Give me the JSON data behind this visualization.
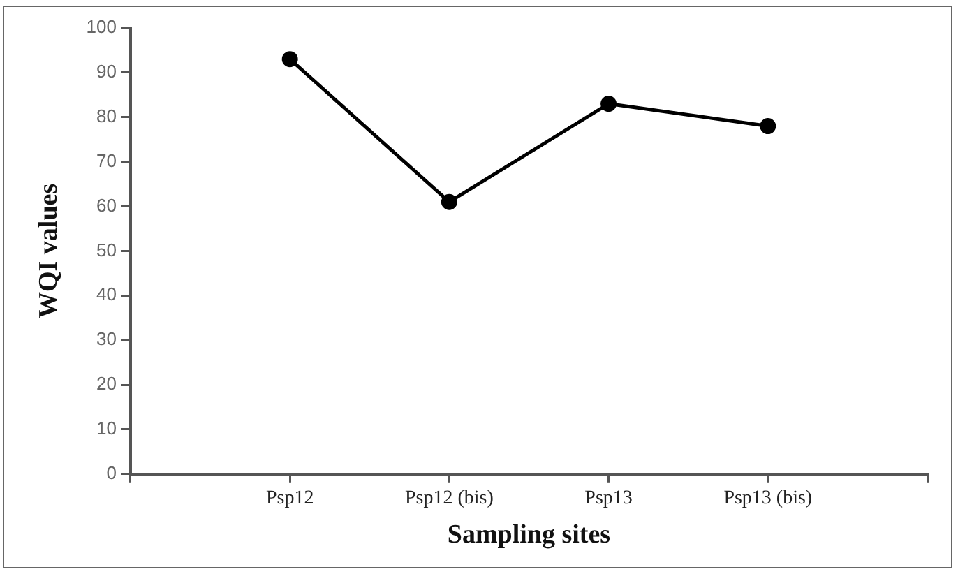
{
  "chart_data": {
    "type": "line",
    "xlabel": "Sampling sites",
    "ylabel": "WQI values",
    "categories": [
      null,
      "Psp12",
      "Psp12 (bis)",
      "Psp13",
      "Psp13 (bis)",
      null
    ],
    "series": [
      {
        "color": "#000000",
        "values": [
          null,
          93,
          61,
          83,
          78,
          null
        ]
      }
    ],
    "ylim": [
      0,
      100
    ],
    "yticks": [
      0,
      10,
      20,
      30,
      40,
      50,
      60,
      70,
      80,
      90,
      100
    ],
    "grid": false,
    "legend": false,
    "marker": "circle",
    "line_style": "solid"
  }
}
